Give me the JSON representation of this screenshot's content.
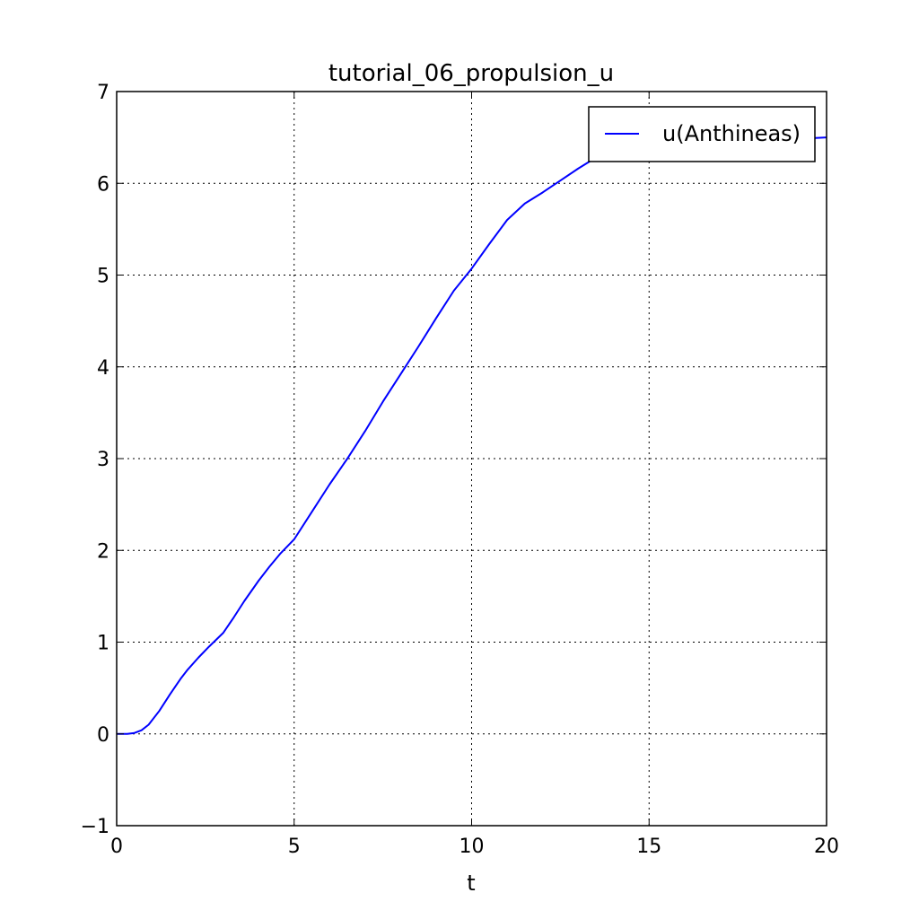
{
  "chart_data": {
    "type": "line",
    "title": "tutorial_06_propulsion_u",
    "xlabel": "t",
    "ylabel": "",
    "xlim": [
      0,
      20
    ],
    "ylim": [
      -1,
      7
    ],
    "xticks": [
      0,
      5,
      10,
      15,
      20
    ],
    "yticks": [
      -1,
      0,
      1,
      2,
      3,
      4,
      5,
      6,
      7
    ],
    "xtick_labels": [
      "0",
      "5",
      "10",
      "15",
      "20"
    ],
    "ytick_labels": [
      "−1",
      "0",
      "1",
      "2",
      "3",
      "4",
      "5",
      "6",
      "7"
    ],
    "grid": true,
    "legend_position": "top-right",
    "series": [
      {
        "name": "u(Anthineas)",
        "color": "#0000ff",
        "x": [
          0,
          0.3,
          0.5,
          0.7,
          0.9,
          1.2,
          1.5,
          1.8,
          2.0,
          2.3,
          2.6,
          3.0,
          3.3,
          3.6,
          4.0,
          4.3,
          4.6,
          5.0,
          5.5,
          6.0,
          6.5,
          7.0,
          7.5,
          8.0,
          8.5,
          9.0,
          9.5,
          10.0,
          10.5,
          11.0,
          11.5,
          12.0,
          12.5,
          13.0,
          13.5,
          14.0,
          14.5,
          15.0,
          15.5,
          16.0,
          16.5,
          17.0,
          17.5,
          18.0,
          18.5,
          19.0,
          19.5,
          20.0
        ],
        "y": [
          0.0,
          0.0,
          0.01,
          0.04,
          0.1,
          0.25,
          0.43,
          0.6,
          0.7,
          0.83,
          0.95,
          1.1,
          1.27,
          1.45,
          1.67,
          1.82,
          1.96,
          2.12,
          2.42,
          2.72,
          3.0,
          3.3,
          3.62,
          3.92,
          4.22,
          4.53,
          4.83,
          5.07,
          5.34,
          5.6,
          5.78,
          5.9,
          6.03,
          6.16,
          6.28,
          6.38,
          6.45,
          6.5,
          6.52,
          6.5,
          6.5,
          6.5,
          6.48,
          6.48,
          6.48,
          6.48,
          6.49,
          6.5
        ]
      }
    ]
  }
}
